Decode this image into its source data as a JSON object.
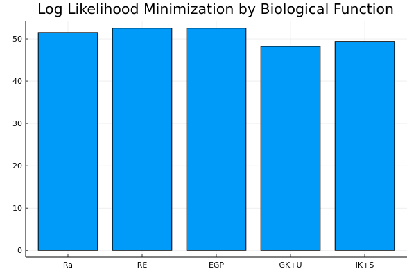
{
  "chart_data": {
    "type": "bar",
    "title": "Log Likelihood Minimization by Biological Function",
    "xlabel": "",
    "ylabel": "",
    "categories": [
      "Ra",
      "RE",
      "EGP",
      "GK+U",
      "IK+S"
    ],
    "values": [
      51.5,
      52.5,
      52.5,
      48.2,
      49.4
    ],
    "ylim": [
      -1.6,
      54.1
    ],
    "yticks": [
      0,
      10,
      20,
      30,
      40,
      50
    ],
    "grid": true,
    "legend": "none",
    "colors": {
      "bar_fill": "#009af9",
      "bar_stroke": "#000000",
      "grid": "#e6e6e6",
      "axis": "#000000",
      "text": "#000000"
    }
  }
}
